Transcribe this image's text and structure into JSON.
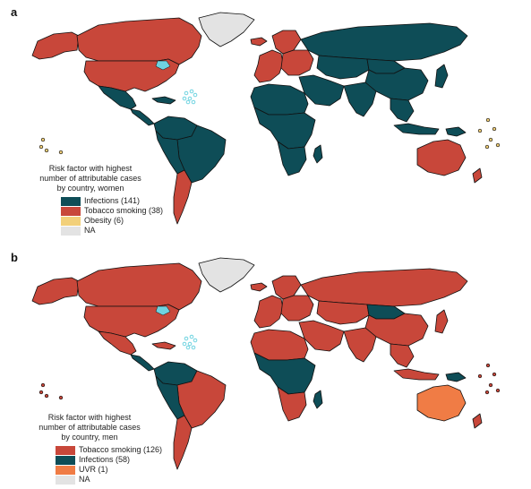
{
  "colors": {
    "infections": "#0e4d57",
    "tobacco": "#c8473a",
    "obesity": "#f2d07a",
    "uvr": "#f07c45",
    "na": "#e3e3e3",
    "border": "#111111",
    "water": "#6fd3e0"
  },
  "panel_a": {
    "letter": "a",
    "legend_title": "Risk factor with highest\nnumber of attributable cases\nby country, women",
    "legend_items": [
      {
        "label": "Infections (141)",
        "color_key": "infections"
      },
      {
        "label": "Tobacco smoking (38)",
        "color_key": "tobacco"
      },
      {
        "label": "Obesity (6)",
        "color_key": "obesity"
      },
      {
        "label": "NA",
        "color_key": "na"
      }
    ],
    "regions": {
      "canada": "tobacco",
      "alaska": "tobacco",
      "usa": "tobacco",
      "greenland": "na",
      "mexico": "infections",
      "central_america": "infections",
      "caribbean": "infections",
      "northern_south_america": "infections",
      "brazil": "infections",
      "peru_bolivia": "infections",
      "southern_cone": "tobacco",
      "iceland": "tobacco",
      "western_europe": "tobacco",
      "northern_europe": "tobacco",
      "eastern_europe": "tobacco",
      "russia": "infections",
      "central_asia": "infections",
      "middle_east": "infections",
      "north_africa": "infections",
      "sub_saharan_africa": "infections",
      "southern_africa": "infections",
      "madagascar": "infections",
      "south_asia": "infections",
      "china": "infections",
      "mongolia": "infections",
      "southeast_asia": "infections",
      "japan": "infections",
      "indonesia": "infections",
      "png": "infections",
      "australia": "tobacco",
      "new_zealand": "tobacco",
      "pacific_small": "obesity"
    }
  },
  "panel_b": {
    "letter": "b",
    "legend_title": "Risk factor with highest\nnumber of attributable cases\nby country, men",
    "legend_items": [
      {
        "label": "Tobacco smoking (126)",
        "color_key": "tobacco"
      },
      {
        "label": "Infections (58)",
        "color_key": "infections"
      },
      {
        "label": "UVR (1)",
        "color_key": "uvr"
      },
      {
        "label": "NA",
        "color_key": "na"
      }
    ],
    "regions": {
      "canada": "tobacco",
      "alaska": "tobacco",
      "usa": "tobacco",
      "greenland": "na",
      "mexico": "tobacco",
      "central_america": "infections",
      "caribbean": "tobacco",
      "northern_south_america": "infections",
      "brazil": "tobacco",
      "peru_bolivia": "infections",
      "southern_cone": "tobacco",
      "iceland": "tobacco",
      "western_europe": "tobacco",
      "northern_europe": "tobacco",
      "eastern_europe": "tobacco",
      "russia": "tobacco",
      "central_asia": "tobacco",
      "middle_east": "tobacco",
      "north_africa": "tobacco",
      "sub_saharan_africa": "infections",
      "southern_africa": "tobacco",
      "madagascar": "infections",
      "south_asia": "tobacco",
      "china": "tobacco",
      "mongolia": "infections",
      "southeast_asia": "tobacco",
      "japan": "tobacco",
      "indonesia": "tobacco",
      "png": "infections",
      "australia": "uvr",
      "new_zealand": "tobacco",
      "pacific_small": "tobacco"
    }
  }
}
